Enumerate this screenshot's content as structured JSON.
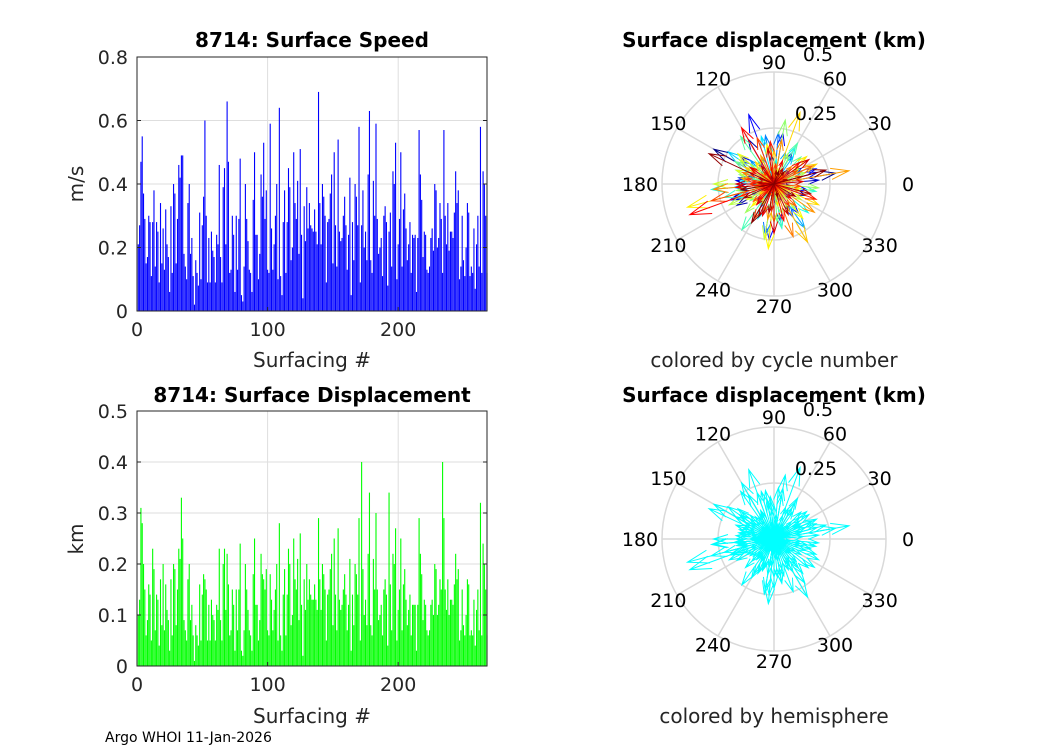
{
  "footer": "Argo WHOI 11-Jan-2026",
  "chart_data": [
    {
      "type": "bar",
      "title": "8714: Surface Speed",
      "xlabel": "Surfacing #",
      "ylabel": "m/s",
      "xlim": [
        0,
        268
      ],
      "ylim": [
        0,
        0.8
      ],
      "xticks": [
        0,
        100,
        200
      ],
      "yticks": [
        0,
        0.2,
        0.4,
        0.6,
        0.8
      ],
      "ytick_labels": [
        "0",
        "0.2",
        "0.4",
        "0.6",
        "0.8"
      ],
      "grid": true,
      "color": "#0000ff",
      "values": [
        0.21,
        0.27,
        0.47,
        0.55,
        0.37,
        0.29,
        0.15,
        0.17,
        0.3,
        0.28,
        0.11,
        0.28,
        0.38,
        0.14,
        0.28,
        0.25,
        0.09,
        0.34,
        0.15,
        0.26,
        0.13,
        0.32,
        0.21,
        0.17,
        0.06,
        0.33,
        0.12,
        0.4,
        0.37,
        0.15,
        0.29,
        0.46,
        0.42,
        0.49,
        0.49,
        0.18,
        0.14,
        0.1,
        0.34,
        0.4,
        0.18,
        0.23,
        0.11,
        0.02,
        0.16,
        0.12,
        0.08,
        0.31,
        0.1,
        0.27,
        0.36,
        0.6,
        0.3,
        0.09,
        0.23,
        0.09,
        0.25,
        0.19,
        0.17,
        0.09,
        0.24,
        0.21,
        0.46,
        0.17,
        0.09,
        0.39,
        0.45,
        0.21,
        0.66,
        0.47,
        0.12,
        0.13,
        0.3,
        0.24,
        0.06,
        0.3,
        0.13,
        0.29,
        0.48,
        0.05,
        0.03,
        0.14,
        0.4,
        0.29,
        0.22,
        0.13,
        0.12,
        0.06,
        0.35,
        0.5,
        0.24,
        0.24,
        0.1,
        0.18,
        0.43,
        0.36,
        0.53,
        0.29,
        0.38,
        0.13,
        0.12,
        0.59,
        0.26,
        0.13,
        0.21,
        0.3,
        0.4,
        0.1,
        0.64,
        0.11,
        0.05,
        0.28,
        0.38,
        0.12,
        0.28,
        0.45,
        0.39,
        0.16,
        0.2,
        0.5,
        0.34,
        0.29,
        0.41,
        0.18,
        0.51,
        0.24,
        0.04,
        0.33,
        0.22,
        0.39,
        0.26,
        0.34,
        0.27,
        0.26,
        0.25,
        0.32,
        0.25,
        0.21,
        0.69,
        0.34,
        0.21,
        0.4,
        0.36,
        0.3,
        0.09,
        0.28,
        0.29,
        0.37,
        0.43,
        0.15,
        0.5,
        0.27,
        0.14,
        0.54,
        0.25,
        0.22,
        0.23,
        0.3,
        0.36,
        0.27,
        0.13,
        0.24,
        0.42,
        0.05,
        0.28,
        0.16,
        0.4,
        0.36,
        0.27,
        0.58,
        0.09,
        0.27,
        0.38,
        0.2,
        0.25,
        0.16,
        0.43,
        0.63,
        0.16,
        0.12,
        0.41,
        0.3,
        0.59,
        0.29,
        0.18,
        0.2,
        0.23,
        0.11,
        0.3,
        0.33,
        0.28,
        0.08,
        0.25,
        0.31,
        0.14,
        0.44,
        0.4,
        0.53,
        0.1,
        0.21,
        0.29,
        0.5,
        0.14,
        0.32,
        0.37,
        0.26,
        0.16,
        0.21,
        0.28,
        0.12,
        0.24,
        0.23,
        0.24,
        0.06,
        0.23,
        0.57,
        0.43,
        0.35,
        0.17,
        0.25,
        0.24,
        0.13,
        0.12,
        0.14,
        0.23,
        0.26,
        0.19,
        0.4,
        0.38,
        0.2,
        0.23,
        0.34,
        0.29,
        0.12,
        0.57,
        0.3,
        0.21,
        0.34,
        0.19,
        0.25,
        0.25,
        0.23,
        0.31,
        0.44,
        0.34,
        0.38,
        0.1,
        0.14,
        0.3,
        0.16,
        0.11,
        0.2,
        0.34,
        0.31,
        0.11,
        0.14,
        0.12,
        0.26,
        0.07,
        0.21,
        0.3,
        0.14,
        0.58,
        0.12,
        0.44,
        0.4,
        0.3,
        0.12
      ]
    },
    {
      "type": "bar",
      "title": "8714: Surface Displacement",
      "xlabel": "Surfacing #",
      "ylabel": "km",
      "xlim": [
        0,
        268
      ],
      "ylim": [
        0,
        0.5
      ],
      "xticks": [
        0,
        100,
        200
      ],
      "yticks": [
        0,
        0.1,
        0.2,
        0.3,
        0.4,
        0.5
      ],
      "ytick_labels": [
        "0",
        "0.1",
        "0.2",
        "0.3",
        "0.4",
        "0.5"
      ],
      "grid": true,
      "color": "#00ff00",
      "values": [
        0.1,
        0.13,
        0.31,
        0.28,
        0.2,
        0.15,
        0.06,
        0.09,
        0.16,
        0.14,
        0.05,
        0.23,
        0.19,
        0.07,
        0.14,
        0.13,
        0.04,
        0.17,
        0.08,
        0.2,
        0.07,
        0.16,
        0.11,
        0.09,
        0.03,
        0.17,
        0.06,
        0.2,
        0.19,
        0.08,
        0.15,
        0.23,
        0.21,
        0.33,
        0.25,
        0.09,
        0.07,
        0.05,
        0.17,
        0.2,
        0.09,
        0.12,
        0.06,
        0.01,
        0.08,
        0.06,
        0.04,
        0.16,
        0.05,
        0.14,
        0.18,
        0.17,
        0.15,
        0.05,
        0.12,
        0.05,
        0.13,
        0.1,
        0.09,
        0.05,
        0.12,
        0.11,
        0.23,
        0.09,
        0.05,
        0.2,
        0.23,
        0.11,
        0.22,
        0.16,
        0.06,
        0.07,
        0.15,
        0.12,
        0.03,
        0.15,
        0.07,
        0.15,
        0.24,
        0.03,
        0.02,
        0.07,
        0.2,
        0.15,
        0.11,
        0.07,
        0.06,
        0.03,
        0.18,
        0.25,
        0.12,
        0.12,
        0.05,
        0.09,
        0.22,
        0.18,
        0.17,
        0.15,
        0.19,
        0.07,
        0.06,
        0.18,
        0.13,
        0.07,
        0.11,
        0.15,
        0.2,
        0.05,
        0.28,
        0.06,
        0.03,
        0.14,
        0.19,
        0.06,
        0.14,
        0.23,
        0.2,
        0.08,
        0.1,
        0.25,
        0.17,
        0.15,
        0.21,
        0.09,
        0.26,
        0.12,
        0.02,
        0.17,
        0.11,
        0.2,
        0.13,
        0.17,
        0.14,
        0.13,
        0.13,
        0.16,
        0.13,
        0.11,
        0.29,
        0.17,
        0.11,
        0.2,
        0.18,
        0.15,
        0.05,
        0.14,
        0.15,
        0.19,
        0.22,
        0.08,
        0.25,
        0.14,
        0.07,
        0.27,
        0.13,
        0.11,
        0.12,
        0.15,
        0.18,
        0.14,
        0.07,
        0.12,
        0.21,
        0.03,
        0.14,
        0.08,
        0.2,
        0.18,
        0.14,
        0.29,
        0.05,
        0.4,
        0.19,
        0.1,
        0.13,
        0.08,
        0.22,
        0.34,
        0.08,
        0.06,
        0.21,
        0.15,
        0.3,
        0.15,
        0.09,
        0.1,
        0.12,
        0.06,
        0.15,
        0.17,
        0.14,
        0.04,
        0.34,
        0.16,
        0.07,
        0.22,
        0.2,
        0.27,
        0.05,
        0.11,
        0.15,
        0.25,
        0.07,
        0.16,
        0.19,
        0.13,
        0.08,
        0.11,
        0.14,
        0.06,
        0.12,
        0.12,
        0.12,
        0.03,
        0.12,
        0.29,
        0.22,
        0.18,
        0.09,
        0.13,
        0.12,
        0.07,
        0.06,
        0.07,
        0.12,
        0.13,
        0.1,
        0.2,
        0.19,
        0.1,
        0.12,
        0.17,
        0.15,
        0.4,
        0.29,
        0.15,
        0.11,
        0.17,
        0.1,
        0.13,
        0.13,
        0.12,
        0.16,
        0.22,
        0.17,
        0.19,
        0.05,
        0.07,
        0.15,
        0.08,
        0.06,
        0.1,
        0.17,
        0.16,
        0.06,
        0.07,
        0.06,
        0.13,
        0.04,
        0.11,
        0.15,
        0.07,
        0.32,
        0.06,
        0.24,
        0.2,
        0.15,
        0.06
      ]
    },
    {
      "type": "compass",
      "title": "Surface displacement (km)",
      "subtitle": "colored by cycle number",
      "rlim": [
        0,
        0.5
      ],
      "rticks": [
        0.25,
        0.5
      ],
      "rtick_labels": [
        "0.25",
        "0.5"
      ],
      "angle_ticks": [
        0,
        30,
        60,
        90,
        120,
        150,
        180,
        210,
        240,
        270,
        300,
        330
      ],
      "coloring": "jet-by-cycle",
      "magnitude_source": "displacement",
      "angles_deg": [
        170,
        95,
        150,
        10,
        200,
        340,
        260,
        45,
        185,
        300,
        75,
        120,
        210,
        355,
        30,
        165,
        250,
        280,
        135,
        5,
        190,
        60,
        225,
        320,
        100,
        175,
        245,
        15,
        140,
        290,
        350,
        80,
        200,
        110,
        265,
        40,
        155,
        230,
        310,
        20,
        185,
        125,
        270,
        65,
        215,
        330,
        95,
        170,
        255,
        25,
        145,
        300,
        195,
        50,
        240,
        355,
        115,
        180,
        275,
        35,
        160,
        205,
        85,
        325,
        10,
        150,
        260,
        230,
        100,
        190,
        45,
        285,
        135,
        345,
        220,
        70,
        175,
        250,
        305,
        15,
        195,
        120,
        280,
        55,
        165,
        235,
        340,
        90,
        185,
        145,
        265,
        30,
        210,
        315,
        105,
        160,
        245,
        175,
        60,
        295,
        130,
        200,
        15,
        270,
        85,
        155,
        320,
        40,
        185,
        225,
        110,
        250,
        350,
        75,
        140,
        195,
        280,
        20,
        170,
        235,
        95,
        310,
        60,
        180,
        125,
        260,
        340,
        45,
        200,
        150,
        5,
        275,
        115,
        215,
        30,
        165,
        300,
        240,
        80,
        190,
        135,
        355,
        225,
        65,
        170,
        285,
        20,
        145,
        205,
        100,
        260,
        330,
        50,
        180,
        120,
        240,
        15,
        295,
        160,
        210,
        75,
        350,
        140,
        255,
        35,
        185,
        310,
        100,
        225,
        265,
        160,
        195,
        40,
        280,
        130,
        175,
        335,
        70,
        215,
        250,
        25,
        150,
        300,
        90,
        190,
        230,
        345,
        55,
        170,
        270,
        115,
        205,
        10,
        260,
        140,
        325,
        80,
        185,
        235,
        45,
        160,
        290,
        120,
        200,
        25,
        250,
        100,
        180,
        315,
        65,
        220,
        145,
        355,
        275,
        30,
        195,
        110,
        240,
        85,
        170,
        305,
        50,
        210,
        130,
        265,
        15,
        175,
        340,
        95,
        225,
        155,
        285,
        40,
        200,
        120,
        250,
        70,
        185,
        320,
        5,
        145,
        230,
        100,
        270,
        180,
        35,
        215,
        160,
        295,
        60,
        190,
        125,
        345,
        245,
        20,
        175,
        80,
        260,
        110,
        330,
        205,
        50,
        155,
        285,
        15,
        240,
        190,
        70
      ]
    },
    {
      "type": "compass",
      "title": "Surface displacement (km)",
      "subtitle": "colored by hemisphere",
      "rlim": [
        0,
        0.5
      ],
      "rticks": [
        0.25,
        0.5
      ],
      "rtick_labels": [
        "0.25",
        "0.5"
      ],
      "angle_ticks": [
        0,
        30,
        60,
        90,
        120,
        150,
        180,
        210,
        240,
        270,
        300,
        330
      ],
      "coloring": "hemisphere",
      "color": "#00ffff",
      "magnitude_source": "displacement"
    }
  ]
}
